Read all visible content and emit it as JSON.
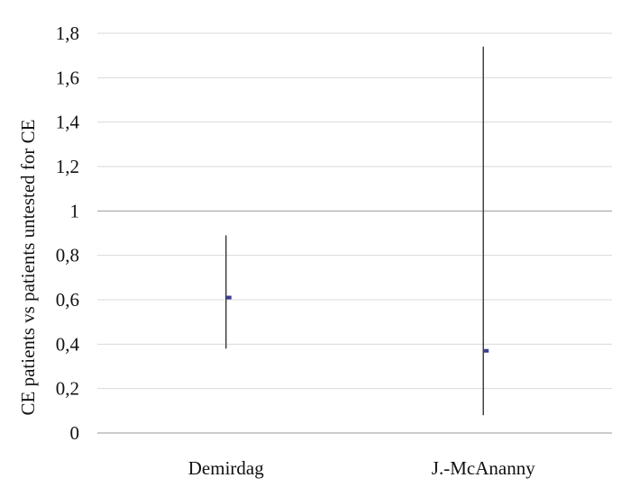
{
  "chart_data": {
    "type": "scatter",
    "title": "",
    "xlabel": "",
    "ylabel": "CE patients vs patients untested for CE",
    "ylim": [
      0,
      1.8
    ],
    "y_ticks": [
      0,
      0.2,
      0.4,
      0.6,
      0.8,
      1,
      1.2,
      1.4,
      1.6,
      1.8
    ],
    "y_tick_labels": [
      "0",
      "0,2",
      "0,4",
      "0,6",
      "0,8",
      "1",
      "1,2",
      "1,4",
      "1,6",
      "1,8"
    ],
    "categories": [
      "Demirdag",
      "J.-McAnanny"
    ],
    "series": [
      {
        "values": [
          0.61,
          0.37
        ],
        "lower": [
          0.38,
          0.08
        ],
        "upper": [
          0.89,
          1.74
        ]
      }
    ],
    "reference_line": 1,
    "grid": true,
    "legend": "none",
    "colors": {
      "grid": "#d9d9d9",
      "reference": "#9a9a9a",
      "error_bar": "#444444",
      "point": "#3c3c8f",
      "axis": "#9a9a9a"
    }
  }
}
